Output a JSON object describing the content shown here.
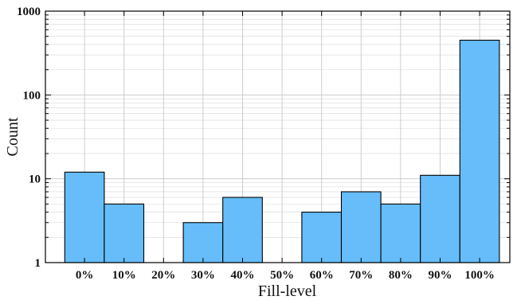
{
  "chart_data": {
    "type": "bar",
    "xlabel": "Fill-level",
    "ylabel": "Count",
    "yscale": "log",
    "ylim": [
      1,
      1000
    ],
    "y_ticks": [
      "1",
      "10",
      "100",
      "1000"
    ],
    "grid": true,
    "categories": [
      "0%",
      "10%",
      "20%",
      "30%",
      "40%",
      "50%",
      "60%",
      "70%",
      "80%",
      "90%",
      "100%"
    ],
    "values": [
      12,
      5,
      0,
      3,
      6,
      0,
      4,
      7,
      5,
      11,
      450
    ],
    "bar_color": "#66bdfa",
    "bar_edge_color": "#000000",
    "grid_color": "#c8c8c8"
  }
}
